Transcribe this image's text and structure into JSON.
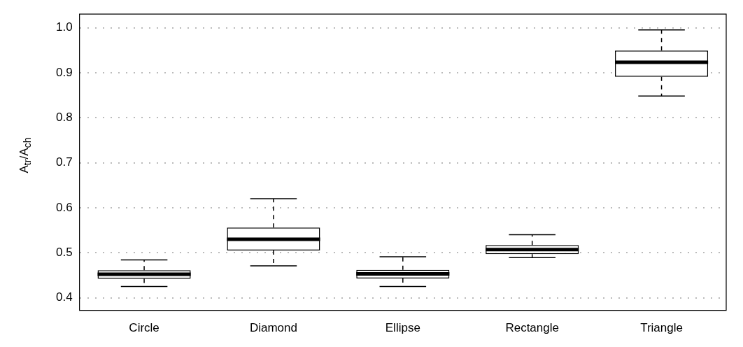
{
  "chart_data": {
    "type": "box",
    "ylabel": "A$_{tr}$/A$_{ch}$",
    "categories": [
      "Circle",
      "Diamond",
      "Ellipse",
      "Rectangle",
      "Triangle"
    ],
    "boxes": [
      {
        "low": 0.425,
        "q1": 0.442,
        "median": 0.452,
        "q3": 0.461,
        "high": 0.484
      },
      {
        "low": 0.471,
        "q1": 0.505,
        "median": 0.53,
        "q3": 0.556,
        "high": 0.62
      },
      {
        "low": 0.425,
        "q1": 0.443,
        "median": 0.453,
        "q3": 0.462,
        "high": 0.491
      },
      {
        "low": 0.489,
        "q1": 0.497,
        "median": 0.507,
        "q3": 0.517,
        "high": 0.54
      },
      {
        "low": 0.848,
        "q1": 0.891,
        "median": 0.923,
        "q3": 0.949,
        "high": 0.995
      }
    ],
    "color": "#000000",
    "ylim": [
      0.372,
      1.03
    ],
    "yticks": [
      {
        "value": 0.4,
        "label": "0.4"
      },
      {
        "value": 0.5,
        "label": "0.5"
      },
      {
        "value": 0.6,
        "label": "0.6"
      },
      {
        "value": 0.7,
        "label": "0.7"
      },
      {
        "value": 0.8,
        "label": "0.8"
      },
      {
        "value": 0.9,
        "label": "0.9"
      },
      {
        "value": 1,
        "label": "1.0"
      }
    ],
    "grid": "y",
    "legend": false
  }
}
